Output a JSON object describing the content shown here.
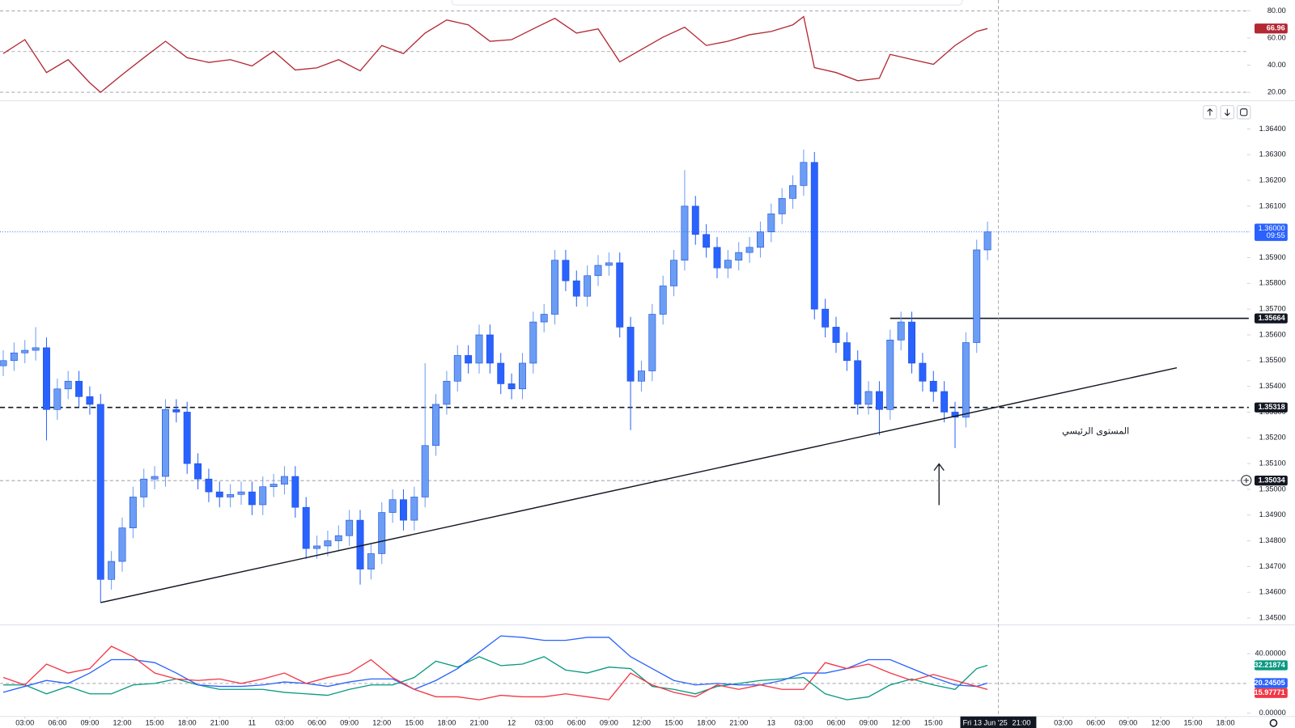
{
  "chart_data": [
    {
      "type": "line",
      "xlim": [
        -0.3,
        115
      ],
      "ylim": [
        15,
        88
      ],
      "yticks": [
        {
          "value": 80,
          "label": "80.00"
        },
        {
          "value": 60,
          "label": "60.00"
        },
        {
          "value": 40,
          "label": "40.00"
        },
        {
          "value": 20,
          "label": "20.00"
        }
      ],
      "levels": [
        80,
        50,
        20
      ],
      "x": [
        0,
        2,
        4,
        6,
        8,
        9,
        11,
        13,
        15,
        17,
        19,
        21,
        23,
        25,
        27,
        29,
        31,
        33,
        35,
        37,
        39,
        41,
        43,
        45,
        47,
        49,
        51,
        53,
        55,
        57,
        59,
        61,
        63,
        65,
        67,
        69,
        71,
        73,
        74,
        75,
        77,
        79,
        81,
        82,
        84,
        86,
        88,
        90,
        91
      ],
      "series": [
        {
          "color": "#b22833",
          "values": [
            48.5,
            58.8,
            34.5,
            44,
            27,
            20,
            33,
            45.5,
            57.6,
            45.5,
            42,
            44,
            39.4,
            50.3,
            36.4,
            38,
            44,
            35.8,
            54.5,
            48.5,
            63.6,
            73.3,
            69.7,
            57.6,
            58.8,
            66.7,
            74.5,
            63.6,
            66.7,
            42.4,
            51.5,
            60.6,
            67.9,
            54.5,
            57.6,
            62.4,
            64.8,
            69.7,
            75.8,
            38.2,
            34.5,
            28.5,
            30.3,
            47.9,
            44.2,
            40.6,
            54.5,
            64.8,
            66.96
          ]
        }
      ]
    },
    {
      "type": "candlestick",
      "xlim": [
        -0.3,
        115
      ],
      "ylim": [
        1.3448,
        1.365
      ],
      "up_color": "#6b9df5",
      "down_color": "#2962ff",
      "x": [
        0,
        1,
        2,
        3,
        4,
        5,
        6,
        7,
        8,
        9,
        10,
        11,
        12,
        13,
        14,
        15,
        16,
        17,
        18,
        19,
        20,
        21,
        22,
        23,
        24,
        25,
        26,
        27,
        28,
        29,
        30,
        31,
        32,
        33,
        34,
        35,
        36,
        37,
        38,
        39,
        40,
        41,
        42,
        43,
        44,
        45,
        46,
        47,
        48,
        49,
        50,
        51,
        52,
        53,
        54,
        55,
        56,
        57,
        58,
        59,
        60,
        61,
        62,
        63,
        64,
        65,
        66,
        67,
        68,
        69,
        70,
        71,
        72,
        73,
        74,
        75,
        76,
        77,
        78,
        79,
        80,
        81,
        82,
        83,
        84,
        85,
        86,
        87,
        88,
        89,
        90,
        91
      ],
      "open": [
        1.3548,
        1.355,
        1.3553,
        1.3554,
        1.3555,
        1.3531,
        1.3539,
        1.3542,
        1.3536,
        1.3533,
        1.3465,
        1.3472,
        1.3485,
        1.3497,
        1.3504,
        1.3505,
        1.3531,
        1.353,
        1.351,
        1.3504,
        1.3499,
        1.3497,
        1.3498,
        1.3499,
        1.3494,
        1.3501,
        1.3502,
        1.3505,
        1.3493,
        1.3477,
        1.3478,
        1.348,
        1.3482,
        1.3488,
        1.3469,
        1.3475,
        1.3491,
        1.3496,
        1.3488,
        1.3497,
        1.3517,
        1.3533,
        1.3542,
        1.3552,
        1.3549,
        1.356,
        1.3549,
        1.3541,
        1.3539,
        1.3549,
        1.3565,
        1.3568,
        1.3589,
        1.3581,
        1.3575,
        1.3583,
        1.3587,
        1.3588,
        1.3563,
        1.3542,
        1.3546,
        1.3568,
        1.3579,
        1.3589,
        1.361,
        1.3599,
        1.3594,
        1.3586,
        1.3589,
        1.3592,
        1.3594,
        1.36,
        1.3607,
        1.3613,
        1.3618,
        1.3627,
        1.357,
        1.3563,
        1.3557,
        1.355,
        1.3533,
        1.3538,
        1.3531,
        1.3558,
        1.3565,
        1.3549,
        1.3542,
        1.3538,
        1.353,
        1.3528,
        1.3557,
        1.3593
      ],
      "high": [
        1.3554,
        1.3557,
        1.3558,
        1.3563,
        1.3559,
        1.3543,
        1.3546,
        1.3546,
        1.354,
        1.3537,
        1.3476,
        1.3489,
        1.3501,
        1.3508,
        1.3509,
        1.3535,
        1.3535,
        1.3534,
        1.3514,
        1.3508,
        1.3503,
        1.3502,
        1.3503,
        1.3503,
        1.3505,
        1.3506,
        1.3509,
        1.3509,
        1.3497,
        1.3482,
        1.3484,
        1.3486,
        1.3492,
        1.3492,
        1.3479,
        1.3495,
        1.35,
        1.35,
        1.3501,
        1.3549,
        1.3537,
        1.3546,
        1.3556,
        1.3556,
        1.3564,
        1.3564,
        1.3553,
        1.3545,
        1.3553,
        1.3569,
        1.3572,
        1.3593,
        1.3593,
        1.3585,
        1.3587,
        1.3591,
        1.3592,
        1.3592,
        1.3567,
        1.355,
        1.3572,
        1.3583,
        1.3593,
        1.3624,
        1.3614,
        1.3603,
        1.3598,
        1.3593,
        1.3596,
        1.3598,
        1.3604,
        1.3611,
        1.3617,
        1.3622,
        1.3632,
        1.3631,
        1.3574,
        1.3567,
        1.3561,
        1.3554,
        1.3542,
        1.3542,
        1.3562,
        1.3569,
        1.3569,
        1.3553,
        1.3546,
        1.3542,
        1.3534,
        1.3561,
        1.3597,
        1.3604
      ],
      "low": [
        1.3544,
        1.3546,
        1.3549,
        1.355,
        1.3519,
        1.3527,
        1.3535,
        1.3532,
        1.3529,
        1.3456,
        1.3461,
        1.3468,
        1.3481,
        1.3493,
        1.35,
        1.3501,
        1.3526,
        1.3506,
        1.35,
        1.3495,
        1.3493,
        1.3493,
        1.3494,
        1.349,
        1.349,
        1.3497,
        1.3498,
        1.3489,
        1.3473,
        1.3473,
        1.3474,
        1.3476,
        1.3478,
        1.3463,
        1.3465,
        1.3471,
        1.3487,
        1.3484,
        1.3484,
        1.3493,
        1.3513,
        1.3529,
        1.3538,
        1.3545,
        1.3545,
        1.3545,
        1.3537,
        1.3535,
        1.3535,
        1.3545,
        1.3561,
        1.3564,
        1.3577,
        1.3571,
        1.3571,
        1.3579,
        1.3583,
        1.3559,
        1.3523,
        1.3538,
        1.3542,
        1.3564,
        1.3575,
        1.3585,
        1.3595,
        1.359,
        1.3582,
        1.3582,
        1.3585,
        1.3588,
        1.359,
        1.3596,
        1.3603,
        1.3609,
        1.3614,
        1.3566,
        1.3559,
        1.3553,
        1.3546,
        1.3529,
        1.3529,
        1.3521,
        1.3527,
        1.3554,
        1.3545,
        1.3538,
        1.3534,
        1.3526,
        1.3516,
        1.3524,
        1.3553,
        1.3589
      ],
      "close": [
        1.355,
        1.3553,
        1.3554,
        1.3555,
        1.3531,
        1.3539,
        1.3542,
        1.3536,
        1.3533,
        1.3465,
        1.3472,
        1.3485,
        1.3497,
        1.3504,
        1.3505,
        1.3531,
        1.353,
        1.351,
        1.3504,
        1.3499,
        1.3497,
        1.3498,
        1.3499,
        1.3494,
        1.3501,
        1.3502,
        1.3505,
        1.3493,
        1.3477,
        1.3478,
        1.348,
        1.3482,
        1.3488,
        1.3469,
        1.3475,
        1.3491,
        1.3496,
        1.3488,
        1.3497,
        1.3517,
        1.3533,
        1.3542,
        1.3552,
        1.3549,
        1.356,
        1.3549,
        1.3541,
        1.3539,
        1.3549,
        1.3565,
        1.3568,
        1.3589,
        1.3581,
        1.3575,
        1.3583,
        1.3587,
        1.3588,
        1.3563,
        1.3542,
        1.3546,
        1.3568,
        1.3579,
        1.3589,
        1.361,
        1.3599,
        1.3594,
        1.3586,
        1.3589,
        1.3592,
        1.3594,
        1.36,
        1.3607,
        1.3613,
        1.3618,
        1.3627,
        1.357,
        1.3563,
        1.3557,
        1.355,
        1.3533,
        1.3538,
        1.3531,
        1.3558,
        1.3565,
        1.3549,
        1.3542,
        1.3538,
        1.353,
        1.3528,
        1.3557,
        1.3593,
        1.36
      ],
      "yticks": [
        {
          "value": 1.364,
          "label": "1.36400"
        },
        {
          "value": 1.363,
          "label": "1.36300"
        },
        {
          "value": 1.362,
          "label": "1.36200"
        },
        {
          "value": 1.361,
          "label": "1.36100"
        },
        {
          "value": 1.36,
          "label": "1.36000"
        },
        {
          "value": 1.359,
          "label": "1.35900"
        },
        {
          "value": 1.358,
          "label": "1.35800"
        },
        {
          "value": 1.357,
          "label": "1.35700"
        },
        {
          "value": 1.356,
          "label": "1.35600"
        },
        {
          "value": 1.355,
          "label": "1.35500"
        },
        {
          "value": 1.354,
          "label": "1.35400"
        },
        {
          "value": 1.353,
          "label": "1.35300"
        },
        {
          "value": 1.352,
          "label": "1.35200"
        },
        {
          "value": 1.351,
          "label": "1.35100"
        },
        {
          "value": 1.35,
          "label": "1.35000"
        },
        {
          "value": 1.349,
          "label": "1.34900"
        },
        {
          "value": 1.348,
          "label": "1.34800"
        },
        {
          "value": 1.347,
          "label": "1.34700"
        },
        {
          "value": 1.346,
          "label": "1.34600"
        },
        {
          "value": 1.345,
          "label": "1.34500"
        }
      ],
      "xticks": [
        {
          "value": 2,
          "label": "03:00"
        },
        {
          "value": 5,
          "label": "06:00"
        },
        {
          "value": 8,
          "label": "09:00"
        },
        {
          "value": 11,
          "label": "12:00"
        },
        {
          "value": 14,
          "label": "15:00"
        },
        {
          "value": 17,
          "label": "18:00"
        },
        {
          "value": 20,
          "label": "21:00"
        },
        {
          "value": 23,
          "label": "11"
        },
        {
          "value": 26,
          "label": "03:00"
        },
        {
          "value": 29,
          "label": "06:00"
        },
        {
          "value": 32,
          "label": "09:00"
        },
        {
          "value": 35,
          "label": "12:00"
        },
        {
          "value": 38,
          "label": "15:00"
        },
        {
          "value": 41,
          "label": "18:00"
        },
        {
          "value": 44,
          "label": "21:00"
        },
        {
          "value": 47,
          "label": "12"
        },
        {
          "value": 50,
          "label": "03:00"
        },
        {
          "value": 53,
          "label": "06:00"
        },
        {
          "value": 56,
          "label": "09:00"
        },
        {
          "value": 59,
          "label": "12:00"
        },
        {
          "value": 62,
          "label": "15:00"
        },
        {
          "value": 65,
          "label": "18:00"
        },
        {
          "value": 68,
          "label": "21:00"
        },
        {
          "value": 71,
          "label": "13"
        },
        {
          "value": 74,
          "label": "03:00"
        },
        {
          "value": 77,
          "label": "06:00"
        },
        {
          "value": 80,
          "label": "09:00"
        },
        {
          "value": 83,
          "label": "12:00"
        },
        {
          "value": 86,
          "label": "15:00"
        },
        {
          "value": 98,
          "label": "03:00"
        },
        {
          "value": 101,
          "label": "06:00"
        },
        {
          "value": 104,
          "label": "09:00"
        },
        {
          "value": 107,
          "label": "12:00"
        },
        {
          "value": 110,
          "label": "15:00"
        },
        {
          "value": 113,
          "label": "18:00"
        }
      ],
      "levels": [
        {
          "value": 1.35664,
          "style": "solid",
          "start": 82
        },
        {
          "value": 1.35318,
          "style": "dashed"
        },
        {
          "value": 1.35034,
          "style": "dotted"
        }
      ],
      "price_line": {
        "value": 1.36,
        "label": "1.36000"
      },
      "countdown": "09:55",
      "trendline": {
        "x": [
          9,
          108.5
        ],
        "y": [
          1.3456,
          1.35472
        ]
      },
      "annotation": {
        "text": "المستوى الرئيسي",
        "x": 101,
        "y": 1.35225
      },
      "crosshair": {
        "x": 92,
        "date": "Fri 13 Jun '25",
        "time": "21:00"
      }
    },
    {
      "type": "line",
      "xlim": [
        -0.3,
        115
      ],
      "ylim": [
        -2.2,
        58.9
      ],
      "yticks": [
        {
          "value": 40,
          "label": "40.00000"
        },
        {
          "value": 0,
          "label": "0.00000"
        }
      ],
      "levels": [
        20
      ],
      "x": [
        0,
        2,
        4,
        6,
        8,
        10,
        12,
        14,
        16,
        18,
        20,
        22,
        24,
        26,
        28,
        30,
        32,
        34,
        36,
        38,
        40,
        42,
        44,
        46,
        48,
        50,
        52,
        54,
        56,
        58,
        60,
        62,
        64,
        66,
        68,
        70,
        72,
        74,
        76,
        78,
        80,
        82,
        84,
        86,
        88,
        90,
        91
      ],
      "series": [
        {
          "color": "#089981",
          "values": [
            19,
            19,
            13,
            18,
            13,
            13,
            19,
            20,
            23,
            19,
            16,
            16,
            16,
            14,
            13,
            12,
            16,
            19,
            19,
            24,
            35,
            31,
            38,
            32,
            33,
            38,
            29,
            27,
            31,
            30,
            18,
            16,
            13,
            18,
            20,
            22,
            23,
            24,
            13,
            9,
            11,
            19,
            23,
            19,
            16,
            30,
            32.21874
          ]
        },
        {
          "color": "#2962ff",
          "values": [
            14,
            18,
            22,
            20,
            27,
            36,
            36,
            34,
            27,
            19,
            18,
            18,
            19,
            21,
            20,
            18,
            21,
            23,
            23,
            16,
            22,
            30,
            41,
            52,
            51,
            49,
            49,
            51,
            51,
            38,
            30,
            22,
            19,
            20,
            19,
            19,
            22,
            27,
            27,
            30,
            36,
            36,
            30,
            24,
            19,
            18,
            20.24505
          ]
        },
        {
          "color": "#f23645",
          "values": [
            24,
            19,
            33,
            27,
            30,
            45,
            38,
            27,
            23,
            22,
            23,
            20,
            23,
            27,
            20,
            24,
            27,
            36,
            24,
            16,
            11,
            11,
            9,
            12,
            11,
            11,
            13,
            11,
            9,
            27,
            19,
            14,
            11,
            19,
            16,
            19,
            16,
            16,
            34,
            30,
            33,
            27,
            22,
            26,
            22,
            18,
            15.97771
          ]
        }
      ]
    }
  ]
}
